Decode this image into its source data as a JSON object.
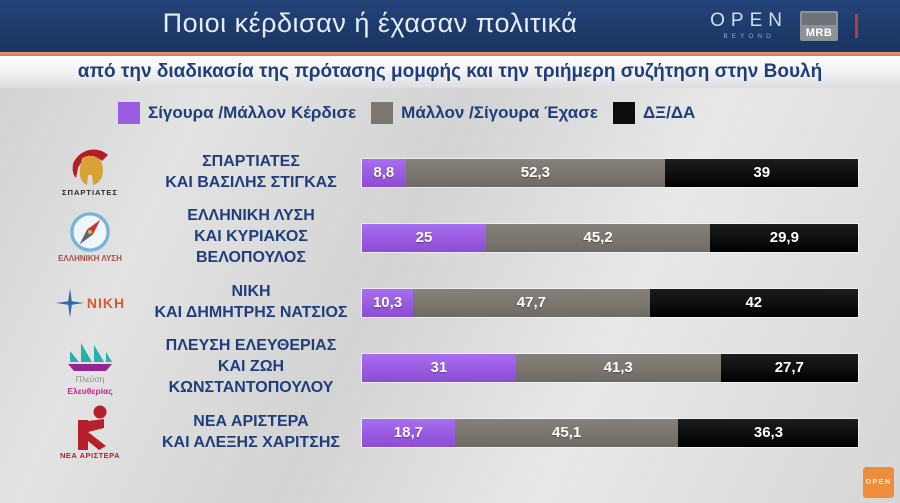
{
  "header": {
    "title": "Ποιοι κέρδισαν ή έχασαν πολιτικά",
    "channel": {
      "name": "OPEN",
      "tagline": "BEYOND"
    },
    "agency": "MRB"
  },
  "subtitle": "από την διαδικασία της πρότασης μομφής και την τριήμερη συζήτηση στην Βουλή",
  "legend": [
    {
      "label": "Σίγουρα /Μάλλον Κέρδισε",
      "color": "#9a5ce0"
    },
    {
      "label": "Μάλλον /Σίγουρα Έχασε",
      "color": "#7b766f"
    },
    {
      "label": "ΔΞ/ΔΑ",
      "color": "#0d0d0d"
    }
  ],
  "chart_data": {
    "type": "bar",
    "orientation": "horizontal",
    "stacked": true,
    "unit": "percent",
    "title": "Ποιοι κέρδισαν ή έχασαν πολιτικά",
    "subtitle": "από την διαδικασία της πρότασης μομφής και την τριήμερη συζήτηση στην Βουλή",
    "legend_position": "top",
    "xlim": [
      0,
      100
    ],
    "categories": [
      "ΣΠΑΡΤΙΑΤΕΣ ΚΑΙ ΒΑΣΙΛΗΣ ΣΤΙΓΚΑΣ",
      "ΕΛΛΗΝΙΚΗ ΛΥΣΗ ΚΑΙ ΚΥΡΙΑΚΟΣ ΒΕΛΟΠΟΥΛΟΣ",
      "ΝΙΚΗ ΚΑΙ ΔΗΜΗΤΡΗΣ ΝΑΤΣΙΟΣ",
      "ΠΛΕΥΣΗ ΕΛΕΥΘΕΡΙΑΣ ΚΑΙ ΖΩΗ ΚΩΝΣΤΑΝΤΟΠΟΥΛΟΥ",
      "ΝΕΑ ΑΡΙΣΤΕΡΑ ΚΑΙ ΑΛΕΞΗΣ ΧΑΡΙΤΣΗΣ"
    ],
    "series": [
      {
        "name": "Σίγουρα /Μάλλον Κέρδισε",
        "color": "#9a5ce0",
        "values": [
          8.8,
          25,
          10.3,
          31,
          18.7
        ]
      },
      {
        "name": "Μάλλον /Σίγουρα Έχασε",
        "color": "#7b766f",
        "values": [
          52.3,
          45.2,
          47.7,
          41.3,
          45.1
        ]
      },
      {
        "name": "ΔΞ/ΔΑ",
        "color": "#0d0d0d",
        "values": [
          39,
          29.9,
          42,
          27.7,
          36.3
        ]
      }
    ]
  },
  "rows": [
    {
      "logo_caption": "ΣΠΑΡΤΙΑΤΕΣ",
      "line1": "ΣΠΑΡΤΙΑΤΕΣ",
      "line2": "ΚΑΙ ΒΑΣΙΛΗΣ ΣΤΙΓΚΑΣ",
      "won_label": "8,8",
      "lost_label": "52,3",
      "dk_label": "39"
    },
    {
      "logo_caption": "ΕΛΛΗΝΙΚΗ ΛΥΣΗ",
      "line1": "ΕΛΛΗΝΙΚΗ ΛΥΣΗ",
      "line2": "ΚΑΙ ΚΥΡΙΑΚΟΣ ΒΕΛΟΠΟΥΛΟΣ",
      "won_label": "25",
      "lost_label": "45,2",
      "dk_label": "29,9"
    },
    {
      "logo_caption": "ΝΙΚΗ",
      "line1": "ΝΙΚΗ",
      "line2": "ΚΑΙ ΔΗΜΗΤΡΗΣ ΝΑΤΣΙΟΣ",
      "won_label": "10,3",
      "lost_label": "47,7",
      "dk_label": "42"
    },
    {
      "logo_caption_top": "Πλεύση",
      "logo_caption_bottom": "Ελευθερίας",
      "line1": "ΠΛΕΥΣΗ ΕΛΕΥΘΕΡΙΑΣ",
      "line2": "ΚΑΙ ΖΩΗ ΚΩΝΣΤΑΝΤΟΠΟΥΛΟΥ",
      "won_label": "31",
      "lost_label": "41,3",
      "dk_label": "27,7"
    },
    {
      "logo_caption": "ΝΕΑ ΑΡΙΣΤΕΡΑ",
      "line1": "ΝΕΑ ΑΡΙΣΤΕΡΑ",
      "line2": "ΚΑΙ ΑΛΕΞΗΣ ΧΑΡΙΤΣΗΣ",
      "won_label": "18,7",
      "lost_label": "45,1",
      "dk_label": "36,3"
    }
  ],
  "watermark": "OPEN"
}
